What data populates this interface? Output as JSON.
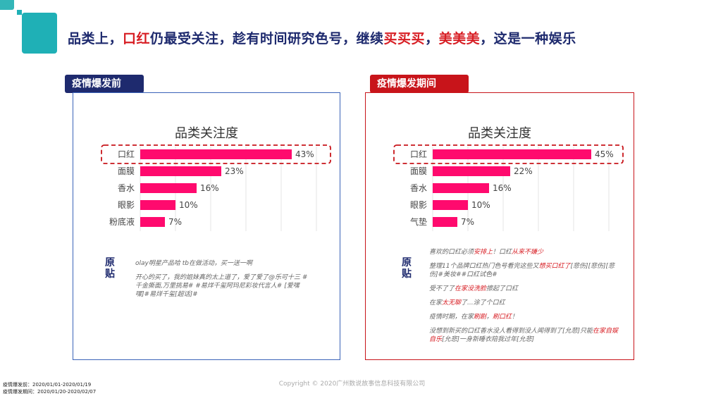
{
  "headline": {
    "p1": "品类上，",
    "p2": "口红",
    "p3": "仍最受关注，趁有时间研究色号，继续",
    "p4": "买买买",
    "p5": "，",
    "p6": "美美美",
    "p7": "，这是一种娱乐"
  },
  "panels": {
    "before": {
      "tag": "疫情爆发前",
      "source_tag": "原贴",
      "quotes": [
        [
          "olay明星产品哈 ",
          "",
          "tb在做活动，买一送一啊"
        ],
        [
          "开心的买了，我的姐妹真的太上道了，爱了爱了@乐可十三 #千金撕面,万里挑易# #易烊千玺阿玛尼彩妆代言人# [爱嘿嘿]#易烊千玺[超话]#",
          "",
          ""
        ]
      ]
    },
    "during": {
      "tag": "疫情爆发期间",
      "source_tag": "原贴",
      "quotes": [
        [
          "喜欢的口红必须",
          "安排上",
          "！口红",
          "从来不嫌少",
          ""
        ],
        [
          "整理11个品牌口红热门色号看完这些又",
          "想买口红了",
          "[悲伤][悲伤][悲伤]#美妆##口红试色#",
          "",
          ""
        ],
        [
          "受不了了",
          "在家没洗脸",
          "擦起了口红",
          "",
          ""
        ],
        [
          "在家",
          "太无聊",
          "了...涂了个口红",
          "",
          ""
        ],
        [
          "疫情时期，在家",
          "刷剧",
          "，",
          "刷口红",
          "！"
        ],
        [
          "没想到新买的口红香水没人看得到没人闻得到了[允悲]只能",
          "在家自娱自乐",
          "[允悲]一身新睡衣陪我过年[允悲]",
          "",
          ""
        ]
      ]
    }
  },
  "chart_data": [
    {
      "type": "bar",
      "title": "品类关注度",
      "categories": [
        "口红",
        "面膜",
        "香水",
        "眼影",
        "粉底液"
      ],
      "values": [
        43,
        23,
        16,
        10,
        7
      ],
      "value_labels": [
        "43%",
        "23%",
        "16%",
        "10%",
        "7%"
      ],
      "highlighted": "口红",
      "bar_color": "#ff0a6e",
      "grid": true,
      "xlim": [
        0,
        50
      ]
    },
    {
      "type": "bar",
      "title": "品类关注度",
      "categories": [
        "口红",
        "面膜",
        "香水",
        "眼影",
        "气垫"
      ],
      "values": [
        45,
        22,
        16,
        10,
        7
      ],
      "value_labels": [
        "45%",
        "22%",
        "16%",
        "10%",
        "7%"
      ],
      "highlighted": "口红",
      "bar_color": "#ff0a6e",
      "grid": true,
      "xlim": [
        0,
        50
      ]
    }
  ],
  "copyright": "Copyright © 2020广州数说故事信息科技有限公司",
  "footnotes": [
    "疫情爆发前：2020/01/01-2020/01/19",
    "疫情爆发期间：2020/01/20-2020/02/07"
  ]
}
